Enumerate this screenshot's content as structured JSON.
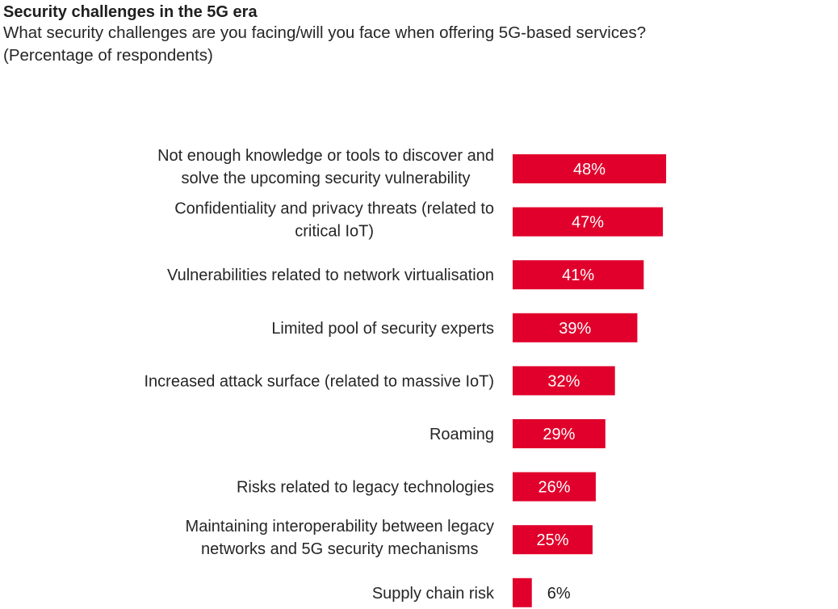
{
  "chart_data": {
    "type": "bar",
    "orientation": "horizontal",
    "title": "Security challenges in the 5G era",
    "subtitle_lines": [
      "What security challenges are you facing/will you face when offering 5G-based services?",
      "(Percentage of respondents)"
    ],
    "xlabel": "",
    "ylabel": "",
    "xlim": [
      0,
      100
    ],
    "grid": false,
    "legend": "none",
    "bar_color": "#e0002b",
    "value_suffix": "%",
    "categories": [
      [
        "Not enough knowledge or tools to discover and",
        "solve the upcoming security vulnerability"
      ],
      [
        "Confidentiality and privacy threats (related to",
        "critical IoT)"
      ],
      [
        "Vulnerabilities related to network virtualisation"
      ],
      [
        "Limited pool of security experts"
      ],
      [
        "Increased attack surface (related to massive IoT)"
      ],
      [
        "Roaming"
      ],
      [
        "Risks related to legacy technologies"
      ],
      [
        "Maintaining interoperability between legacy",
        "networks and 5G security mechanisms"
      ],
      [
        "Supply chain risk"
      ]
    ],
    "values": [
      48,
      47,
      41,
      39,
      32,
      29,
      26,
      25,
      6
    ]
  }
}
